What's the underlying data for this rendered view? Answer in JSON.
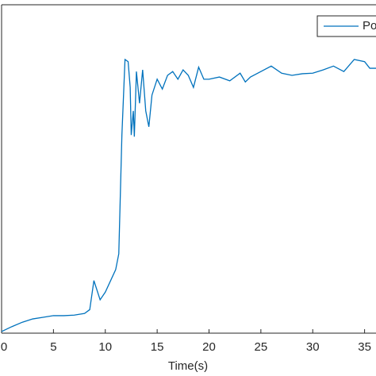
{
  "chart_data": {
    "type": "line",
    "x_label": "Time(s)",
    "x": [
      0,
      1,
      2,
      3,
      4,
      5,
      6,
      7,
      8,
      8.5,
      8.9,
      9.5,
      10,
      11,
      11.3,
      11.6,
      11.9,
      12.2,
      12.4,
      12.5,
      12.7,
      12.8,
      13,
      13.3,
      13.6,
      13.9,
      14.2,
      14.5,
      15,
      15.5,
      16,
      16.5,
      17,
      17.5,
      18,
      18.5,
      19,
      19.5,
      20,
      21,
      22,
      23,
      23.5,
      24,
      25,
      26,
      27,
      28,
      29,
      30,
      31,
      32,
      33,
      34,
      35,
      35.5,
      36.1
    ],
    "series": [
      {
        "name": "Po",
        "color": "#0072bd",
        "values": [
          0.03,
          0.12,
          0.2,
          0.26,
          0.29,
          0.32,
          0.32,
          0.33,
          0.36,
          0.43,
          0.96,
          0.61,
          0.75,
          1.16,
          1.45,
          3.62,
          5.0,
          4.96,
          4.49,
          3.62,
          4.06,
          3.59,
          4.78,
          4.2,
          4.81,
          4.06,
          3.77,
          4.35,
          4.64,
          4.46,
          4.71,
          4.78,
          4.64,
          4.81,
          4.71,
          4.49,
          4.86,
          4.64,
          4.64,
          4.68,
          4.61,
          4.75,
          4.59,
          4.68,
          4.78,
          4.88,
          4.75,
          4.71,
          4.74,
          4.75,
          4.81,
          4.88,
          4.78,
          5.0,
          4.96,
          4.84,
          4.84
        ]
      }
    ],
    "xlim": [
      0,
      36.1
    ],
    "xticks": [
      0,
      5,
      10,
      15,
      20,
      25,
      30,
      35
    ],
    "ylim": [
      0,
      6
    ],
    "legend": "northeast"
  }
}
